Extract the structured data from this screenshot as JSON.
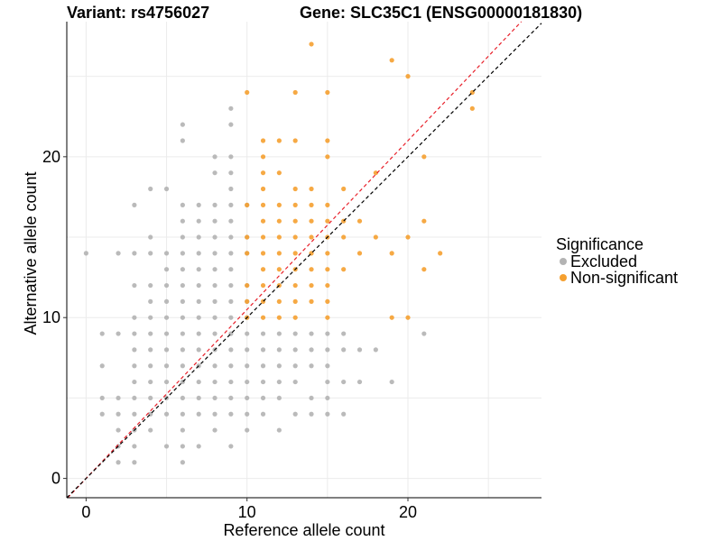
{
  "titles": {
    "variant": "Variant: rs4756027",
    "gene": "Gene: SLC35C1 (ENSG00000181830)"
  },
  "legend": {
    "title": "Significance",
    "items": [
      {
        "label": "Excluded",
        "color": "#b3b3b3"
      },
      {
        "label": "Non-significant",
        "color": "#f5a030"
      }
    ]
  },
  "colors": {
    "excluded": "#b3b3b3",
    "non_significant": "#f5a030",
    "diagonal_ref": "#e8202a",
    "diagonal_fit": "#000000",
    "grid": "#ebebeb"
  },
  "chart_data": {
    "type": "scatter",
    "xlabel": "Reference allele count",
    "ylabel": "Alternative allele count",
    "xlim": [
      -1.2,
      28.3
    ],
    "ylim": [
      -1.2,
      28.4
    ],
    "x_ticks": [
      0,
      10,
      20
    ],
    "y_ticks": [
      0,
      10,
      20
    ],
    "grid": true,
    "legend_position": "right",
    "reference_lines": [
      {
        "name": "",
        "style": "dashed",
        "color": "#e8202a",
        "slope": 1.05,
        "intercept": 0
      },
      {
        "name": "",
        "style": "dashed",
        "color": "#000000",
        "slope": 1.0,
        "intercept": 0
      }
    ],
    "series": [
      {
        "name": "Excluded",
        "color": "#b3b3b3",
        "points": [
          [
            0,
            14
          ],
          [
            2,
            14
          ],
          [
            1,
            9
          ],
          [
            1,
            7
          ],
          [
            1,
            5
          ],
          [
            1,
            4
          ],
          [
            2,
            9
          ],
          [
            2,
            5
          ],
          [
            2,
            4
          ],
          [
            2,
            3
          ],
          [
            2,
            2
          ],
          [
            2,
            1
          ],
          [
            3,
            17
          ],
          [
            3,
            14
          ],
          [
            3,
            12
          ],
          [
            3,
            10
          ],
          [
            3,
            9
          ],
          [
            3,
            8
          ],
          [
            3,
            7
          ],
          [
            3,
            6
          ],
          [
            3,
            5
          ],
          [
            3,
            4
          ],
          [
            3,
            3
          ],
          [
            3,
            2
          ],
          [
            3,
            1
          ],
          [
            4,
            18
          ],
          [
            4,
            15
          ],
          [
            4,
            14
          ],
          [
            4,
            12
          ],
          [
            4,
            11
          ],
          [
            4,
            10
          ],
          [
            4,
            9
          ],
          [
            4,
            8
          ],
          [
            4,
            7
          ],
          [
            4,
            6
          ],
          [
            4,
            5
          ],
          [
            4,
            4
          ],
          [
            4,
            3
          ],
          [
            5,
            18
          ],
          [
            5,
            14
          ],
          [
            5,
            13
          ],
          [
            5,
            12
          ],
          [
            5,
            11
          ],
          [
            5,
            10
          ],
          [
            5,
            9
          ],
          [
            5,
            8
          ],
          [
            5,
            7
          ],
          [
            5,
            6
          ],
          [
            5,
            5
          ],
          [
            5,
            4
          ],
          [
            5,
            2
          ],
          [
            6,
            22
          ],
          [
            6,
            21
          ],
          [
            6,
            17
          ],
          [
            6,
            16
          ],
          [
            6,
            15
          ],
          [
            6,
            14
          ],
          [
            6,
            13
          ],
          [
            6,
            12
          ],
          [
            6,
            11
          ],
          [
            6,
            10
          ],
          [
            6,
            9
          ],
          [
            6,
            8
          ],
          [
            6,
            7
          ],
          [
            6,
            6
          ],
          [
            6,
            5
          ],
          [
            6,
            4
          ],
          [
            6,
            3
          ],
          [
            6,
            2
          ],
          [
            6,
            1
          ],
          [
            7,
            17
          ],
          [
            7,
            16
          ],
          [
            7,
            15
          ],
          [
            7,
            14
          ],
          [
            7,
            13
          ],
          [
            7,
            12
          ],
          [
            7,
            11
          ],
          [
            7,
            10
          ],
          [
            7,
            9
          ],
          [
            7,
            8
          ],
          [
            7,
            7
          ],
          [
            7,
            6
          ],
          [
            7,
            5
          ],
          [
            7,
            4
          ],
          [
            7,
            2
          ],
          [
            8,
            20
          ],
          [
            8,
            19
          ],
          [
            8,
            17
          ],
          [
            8,
            16
          ],
          [
            8,
            15
          ],
          [
            8,
            14
          ],
          [
            8,
            13
          ],
          [
            8,
            12
          ],
          [
            8,
            11
          ],
          [
            8,
            10
          ],
          [
            8,
            9
          ],
          [
            8,
            8
          ],
          [
            8,
            7
          ],
          [
            8,
            6
          ],
          [
            8,
            5
          ],
          [
            8,
            4
          ],
          [
            8,
            3
          ],
          [
            9,
            23
          ],
          [
            9,
            22
          ],
          [
            9,
            20
          ],
          [
            9,
            19
          ],
          [
            9,
            18
          ],
          [
            9,
            17
          ],
          [
            9,
            16
          ],
          [
            9,
            15
          ],
          [
            9,
            14
          ],
          [
            9,
            13
          ],
          [
            9,
            12
          ],
          [
            9,
            11
          ],
          [
            9,
            10
          ],
          [
            9,
            9
          ],
          [
            9,
            8
          ],
          [
            9,
            7
          ],
          [
            9,
            6
          ],
          [
            9,
            5
          ],
          [
            9,
            4
          ],
          [
            9,
            2
          ],
          [
            10,
            17
          ],
          [
            10,
            15
          ],
          [
            10,
            14
          ],
          [
            10,
            12
          ],
          [
            10,
            11
          ],
          [
            10,
            10
          ],
          [
            10,
            9
          ],
          [
            10,
            8
          ],
          [
            10,
            7
          ],
          [
            10,
            6
          ],
          [
            10,
            5
          ],
          [
            10,
            4
          ],
          [
            10,
            3
          ],
          [
            11,
            9
          ],
          [
            11,
            8
          ],
          [
            11,
            7
          ],
          [
            11,
            6
          ],
          [
            11,
            5
          ],
          [
            11,
            4
          ],
          [
            12,
            9
          ],
          [
            12,
            8
          ],
          [
            12,
            7
          ],
          [
            12,
            6
          ],
          [
            12,
            5
          ],
          [
            12,
            3
          ],
          [
            13,
            9
          ],
          [
            13,
            8
          ],
          [
            13,
            7
          ],
          [
            13,
            6
          ],
          [
            13,
            4
          ],
          [
            14,
            9
          ],
          [
            14,
            8
          ],
          [
            14,
            7
          ],
          [
            14,
            5
          ],
          [
            14,
            4
          ],
          [
            15,
            9
          ],
          [
            15,
            8
          ],
          [
            15,
            7
          ],
          [
            15,
            6
          ],
          [
            15,
            5
          ],
          [
            15,
            4
          ],
          [
            16,
            9
          ],
          [
            16,
            8
          ],
          [
            16,
            6
          ],
          [
            16,
            4
          ],
          [
            17,
            8
          ],
          [
            17,
            6
          ],
          [
            18,
            8
          ],
          [
            19,
            6
          ],
          [
            21,
            9
          ]
        ]
      },
      {
        "name": "Non-significant",
        "color": "#f5a030",
        "points": [
          [
            10,
            24
          ],
          [
            10,
            17
          ],
          [
            10,
            15
          ],
          [
            10,
            14
          ],
          [
            10,
            12
          ],
          [
            10,
            11
          ],
          [
            10,
            10
          ],
          [
            11,
            21
          ],
          [
            11,
            20
          ],
          [
            11,
            19
          ],
          [
            11,
            18
          ],
          [
            11,
            17
          ],
          [
            11,
            16
          ],
          [
            11,
            15
          ],
          [
            11,
            14
          ],
          [
            11,
            13
          ],
          [
            11,
            12
          ],
          [
            11,
            11
          ],
          [
            11,
            10
          ],
          [
            12,
            21
          ],
          [
            12,
            19
          ],
          [
            12,
            17
          ],
          [
            12,
            16
          ],
          [
            12,
            15
          ],
          [
            12,
            14
          ],
          [
            12,
            13
          ],
          [
            12,
            12
          ],
          [
            12,
            11
          ],
          [
            12,
            10
          ],
          [
            13,
            24
          ],
          [
            13,
            21
          ],
          [
            13,
            18
          ],
          [
            13,
            17
          ],
          [
            13,
            16
          ],
          [
            13,
            15
          ],
          [
            13,
            14
          ],
          [
            13,
            13
          ],
          [
            13,
            12
          ],
          [
            13,
            11
          ],
          [
            13,
            10
          ],
          [
            14,
            27
          ],
          [
            14,
            18
          ],
          [
            14,
            17
          ],
          [
            14,
            16
          ],
          [
            14,
            15
          ],
          [
            14,
            14
          ],
          [
            14,
            13
          ],
          [
            14,
            12
          ],
          [
            14,
            11
          ],
          [
            15,
            24
          ],
          [
            15,
            21
          ],
          [
            15,
            20
          ],
          [
            15,
            17
          ],
          [
            15,
            16
          ],
          [
            15,
            15
          ],
          [
            15,
            14
          ],
          [
            15,
            13
          ],
          [
            15,
            12
          ],
          [
            15,
            11
          ],
          [
            15,
            10
          ],
          [
            16,
            18
          ],
          [
            16,
            16
          ],
          [
            16,
            15
          ],
          [
            16,
            13
          ],
          [
            17,
            16
          ],
          [
            17,
            14
          ],
          [
            18,
            19
          ],
          [
            18,
            15
          ],
          [
            19,
            26
          ],
          [
            19,
            14
          ],
          [
            19,
            10
          ],
          [
            20,
            25
          ],
          [
            20,
            15
          ],
          [
            20,
            10
          ],
          [
            21,
            20
          ],
          [
            21,
            16
          ],
          [
            21,
            13
          ],
          [
            22,
            14
          ],
          [
            24,
            24
          ],
          [
            24,
            23
          ]
        ]
      }
    ]
  }
}
